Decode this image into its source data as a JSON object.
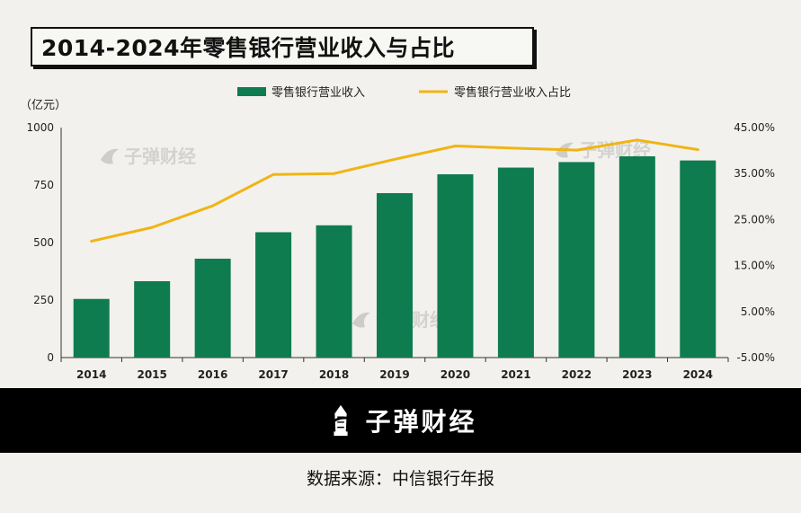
{
  "title": "2014-2024年零售银行营业收入与占比",
  "brand": {
    "name": "子弹财经",
    "watermark": "子弹财经"
  },
  "source": "数据来源：中信银行年报",
  "colors": {
    "bar": "#0e7c4f",
    "line": "#f0b414",
    "background": "#f2f1ed",
    "footer": "#000000"
  },
  "chart_data": {
    "type": "bar+line",
    "unit_label": "（亿元）",
    "categories": [
      "2014",
      "2015",
      "2016",
      "2017",
      "2018",
      "2019",
      "2020",
      "2021",
      "2022",
      "2023",
      "2024"
    ],
    "series": [
      {
        "name": "零售银行营业收入",
        "type": "bar",
        "axis": "left",
        "values": [
          255,
          332,
          430,
          545,
          575,
          715,
          797,
          826,
          850,
          875,
          857
        ]
      },
      {
        "name": "零售银行营业收入占比",
        "type": "line",
        "axis": "right",
        "values": [
          20.3,
          23.3,
          28.0,
          34.8,
          35.0,
          38.1,
          41.0,
          40.5,
          40.1,
          42.3,
          40.2
        ]
      }
    ],
    "y_left": {
      "min": 0,
      "max": 1000,
      "ticks": [
        "0",
        "250",
        "500",
        "750",
        "1000"
      ]
    },
    "y_right": {
      "min": -5,
      "max": 45,
      "ticks": [
        "-5.00%",
        "5.00%",
        "15.00%",
        "25.00%",
        "35.00%",
        "45.00%"
      ]
    },
    "legend_position": "top-center",
    "grid": false
  }
}
